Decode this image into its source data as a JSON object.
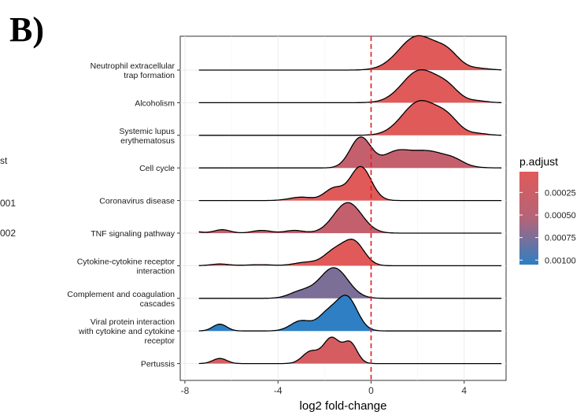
{
  "panel_label": "B)",
  "left_fragments": [
    "st",
    "001",
    "002"
  ],
  "chart_data": {
    "type": "ridgeline",
    "xlabel": "log2 fold-change",
    "x_ticks": [
      -8,
      -4,
      0,
      4
    ],
    "xlim": [
      -8.2,
      5.8
    ],
    "grid": true,
    "reference_line": {
      "x": 0,
      "style": "dashed",
      "color": "#E31A1C"
    },
    "legend": {
      "title": "p.adjust",
      "position": "right",
      "ticks": [
        "0.00025",
        "0.00050",
        "0.00075",
        "0.00100"
      ],
      "tick_values": [
        0.00025,
        0.0005,
        0.00075,
        0.001
      ],
      "range": [
        2e-05,
        0.00105
      ],
      "color_low": "#E05A5A",
      "color_high": "#2E7FC3"
    },
    "series": [
      {
        "name": "Neutrophil extracellular trap formation",
        "p_adjust": 2e-05,
        "peaks": [
          [
            2.0,
            1.0,
            0.8
          ],
          [
            3.3,
            0.4,
            0.5
          ],
          [
            4.6,
            0.05,
            0.5
          ]
        ]
      },
      {
        "name": "Alcoholism",
        "p_adjust": 2e-05,
        "peaks": [
          [
            2.1,
            0.95,
            0.75
          ],
          [
            3.3,
            0.35,
            0.5
          ],
          [
            4.6,
            0.05,
            0.4
          ]
        ]
      },
      {
        "name": "Systemic lupus erythematosus",
        "p_adjust": 2e-05,
        "peaks": [
          [
            2.1,
            1.0,
            0.75
          ],
          [
            3.3,
            0.4,
            0.5
          ],
          [
            4.6,
            0.05,
            0.4
          ]
        ]
      },
      {
        "name": "Cell cycle",
        "p_adjust": 0.00035,
        "peaks": [
          [
            -0.45,
            0.9,
            0.45
          ],
          [
            1.0,
            0.35,
            0.55
          ],
          [
            2.4,
            0.5,
            0.9
          ],
          [
            3.6,
            0.1,
            0.4
          ]
        ]
      },
      {
        "name": "Coronavirus disease",
        "p_adjust": 2e-05,
        "peaks": [
          [
            -0.45,
            1.0,
            0.45
          ],
          [
            -1.6,
            0.35,
            0.4
          ],
          [
            -3.0,
            0.1,
            0.5
          ]
        ]
      },
      {
        "name": "TNF signaling pathway",
        "p_adjust": 0.00035,
        "peaks": [
          [
            -1.0,
            0.9,
            0.6
          ],
          [
            -3.3,
            0.08,
            0.4
          ],
          [
            -4.7,
            0.08,
            0.4
          ],
          [
            -6.4,
            0.1,
            0.35
          ],
          [
            -7.6,
            0.05,
            0.3
          ]
        ]
      },
      {
        "name": "Cytokine-cytokine receptor interaction",
        "p_adjust": 2e-05,
        "peaks": [
          [
            -0.75,
            0.7,
            0.45
          ],
          [
            -1.6,
            0.4,
            0.45
          ],
          [
            -2.8,
            0.1,
            0.5
          ],
          [
            -4.8,
            0.03,
            0.6
          ],
          [
            -6.5,
            0.05,
            0.4
          ]
        ]
      },
      {
        "name": "Complement and coagulation cascades",
        "p_adjust": 0.00075,
        "peaks": [
          [
            -1.6,
            0.9,
            0.6
          ],
          [
            -3.0,
            0.2,
            0.5
          ]
        ]
      },
      {
        "name": "Viral protein interaction with cytokine and cytokine receptor",
        "p_adjust": 0.00105,
        "peaks": [
          [
            -1.05,
            1.0,
            0.45
          ],
          [
            -1.9,
            0.45,
            0.4
          ],
          [
            -3.0,
            0.3,
            0.45
          ],
          [
            -6.5,
            0.2,
            0.3
          ]
        ]
      },
      {
        "name": "Pertussis",
        "p_adjust": 0.00015,
        "peaks": [
          [
            -1.7,
            0.75,
            0.35
          ],
          [
            -0.9,
            0.6,
            0.3
          ],
          [
            -2.6,
            0.35,
            0.35
          ],
          [
            -6.5,
            0.15,
            0.3
          ]
        ]
      }
    ]
  }
}
